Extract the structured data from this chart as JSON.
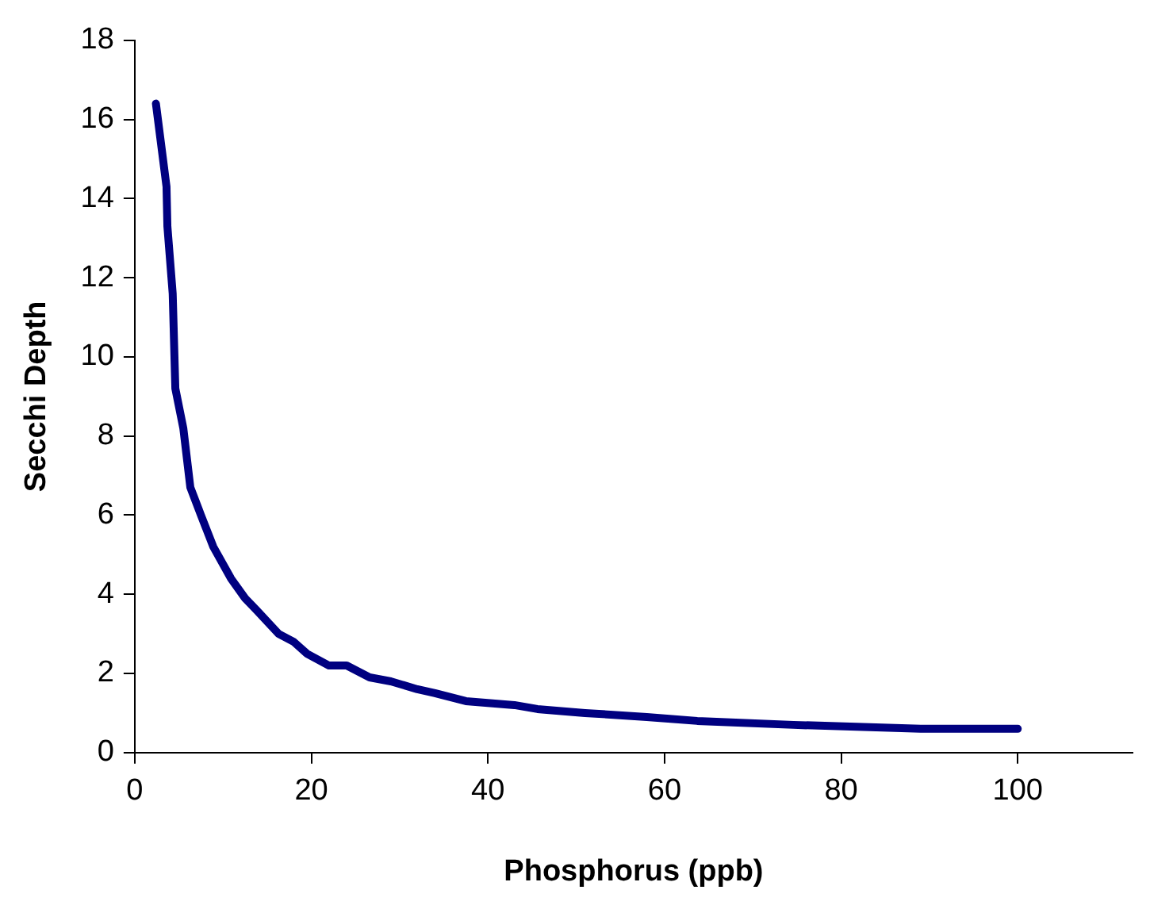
{
  "chart_data": {
    "type": "line",
    "xlabel": "Phosphorus (ppb)",
    "ylabel": "Secchi Depth",
    "xlim": [
      0,
      113
    ],
    "xticks": [
      0,
      20,
      40,
      60,
      80,
      100
    ],
    "ylim": [
      0,
      18
    ],
    "yticks": [
      0,
      2,
      4,
      6,
      8,
      10,
      12,
      14,
      16,
      18
    ],
    "grid": false,
    "legend": false,
    "marker": "none",
    "line_style": "solid",
    "series": [
      {
        "color": "#000080",
        "x": [
          2.4,
          3.6,
          3.7,
          4.3,
          4.6,
          5.5,
          6.3,
          7.5,
          8.9,
          10.9,
          12.5,
          13.8,
          16.3,
          18,
          19.5,
          22,
          24,
          26.6,
          29,
          32,
          34,
          37.5,
          43,
          45.6,
          51,
          58,
          63.7,
          74.6,
          89,
          100
        ],
        "values": [
          16.4,
          14.3,
          13.3,
          11.6,
          9.2,
          8.2,
          6.7,
          6.0,
          5.2,
          4.4,
          3.9,
          3.6,
          3.0,
          2.8,
          2.5,
          2.2,
          2.2,
          1.9,
          1.8,
          1.6,
          1.5,
          1.3,
          1.2,
          1.1,
          1.0,
          0.9,
          0.8,
          0.7,
          0.6,
          0.6
        ]
      }
    ]
  }
}
